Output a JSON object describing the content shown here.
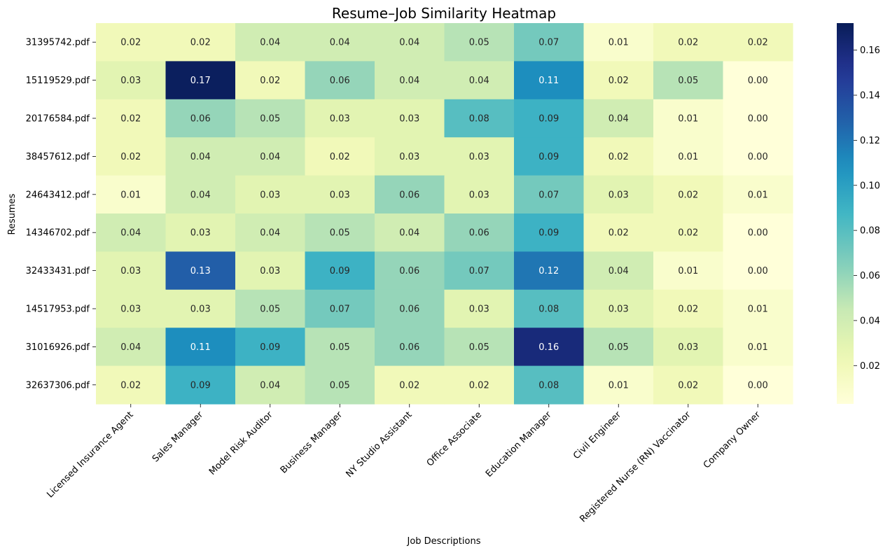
{
  "chart_data": {
    "type": "heatmap",
    "title": "Resume–Job Similarity Heatmap",
    "xlabel": "Job Descriptions",
    "ylabel": "Resumes",
    "colormap": "YlGnBu",
    "x_categories": [
      "Licensed Insurance Agent",
      "Sales Manager",
      "Model Risk Auditor",
      "Business Manager",
      "NY Studio Assistant",
      "Office Associate",
      "Education Manager",
      "Civil Engineer",
      "Registered Nurse (RN) Vaccinator",
      "Company Owner"
    ],
    "y_categories": [
      "31395742.pdf",
      "15119529.pdf",
      "20176584.pdf",
      "38457612.pdf",
      "24643412.pdf",
      "14346702.pdf",
      "32433431.pdf",
      "14517953.pdf",
      "31016926.pdf",
      "32637306.pdf"
    ],
    "values": [
      [
        0.02,
        0.02,
        0.04,
        0.04,
        0.04,
        0.05,
        0.07,
        0.01,
        0.02,
        0.02
      ],
      [
        0.03,
        0.17,
        0.02,
        0.06,
        0.04,
        0.04,
        0.11,
        0.02,
        0.05,
        0.0
      ],
      [
        0.02,
        0.06,
        0.05,
        0.03,
        0.03,
        0.08,
        0.09,
        0.04,
        0.01,
        0.0
      ],
      [
        0.02,
        0.04,
        0.04,
        0.02,
        0.03,
        0.03,
        0.09,
        0.02,
        0.01,
        0.0
      ],
      [
        0.01,
        0.04,
        0.03,
        0.03,
        0.06,
        0.03,
        0.07,
        0.03,
        0.02,
        0.01
      ],
      [
        0.04,
        0.03,
        0.04,
        0.05,
        0.04,
        0.06,
        0.09,
        0.02,
        0.02,
        0.0
      ],
      [
        0.03,
        0.13,
        0.03,
        0.09,
        0.06,
        0.07,
        0.12,
        0.04,
        0.01,
        0.0
      ],
      [
        0.03,
        0.03,
        0.05,
        0.07,
        0.06,
        0.03,
        0.08,
        0.03,
        0.02,
        0.01
      ],
      [
        0.04,
        0.11,
        0.09,
        0.05,
        0.06,
        0.05,
        0.16,
        0.05,
        0.03,
        0.01
      ],
      [
        0.02,
        0.09,
        0.04,
        0.05,
        0.02,
        0.02,
        0.08,
        0.01,
        0.02,
        0.0
      ]
    ],
    "color_range": [
      0.003,
      0.172
    ],
    "colorbar_ticks": [
      "0.02",
      "0.04",
      "0.06",
      "0.08",
      "0.10",
      "0.12",
      "0.14",
      "0.16"
    ],
    "colorbar_tick_values": [
      0.02,
      0.04,
      0.06,
      0.08,
      0.1,
      0.12,
      0.14,
      0.16
    ]
  }
}
